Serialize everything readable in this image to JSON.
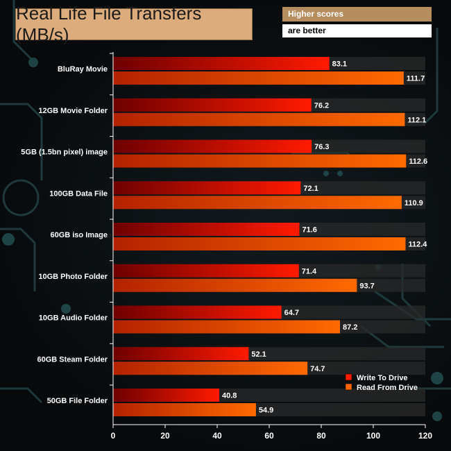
{
  "header": {
    "title": "Real Life File Transfers (MB/s)",
    "note_line1": "Higher scores",
    "note_line2": "are better"
  },
  "colors": {
    "write": "#ff1a00",
    "read": "#ff6600",
    "title_bg": "#dcac7c",
    "note_bg": "#b58d5f"
  },
  "chart_data": {
    "type": "bar",
    "orientation": "horizontal",
    "title": "Real Life File Transfers (MB/s)",
    "categories": [
      "BluRay Movie",
      "12GB Movie Folder",
      "5GB (1.5bn pixel) image",
      "100GB Data File",
      "60GB iso Image",
      "10GB Photo Folder",
      "10GB Audio Folder",
      "60GB Steam Folder",
      "50GB File Folder"
    ],
    "series": [
      {
        "name": "Write To  Drive",
        "values": [
          83.1,
          76.2,
          76.3,
          72.1,
          71.6,
          71.4,
          64.7,
          52.1,
          40.8
        ]
      },
      {
        "name": "Read From  Drive",
        "values": [
          111.7,
          112.1,
          112.6,
          110.9,
          112.4,
          93.7,
          87.2,
          74.7,
          54.9
        ]
      }
    ],
    "xlim": [
      0,
      120
    ],
    "xticks": [
      0,
      20,
      40,
      60,
      80,
      100,
      120
    ],
    "legend": "bottom-right",
    "grid": false
  }
}
